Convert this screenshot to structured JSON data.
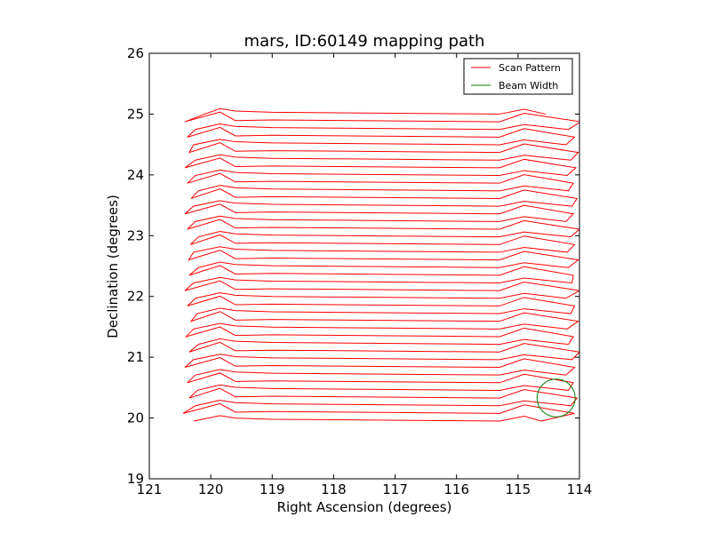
{
  "chart_data": {
    "type": "line",
    "title": "mars, ID:60149 mapping path",
    "xlabel": "Right Ascension (degrees)",
    "ylabel": "Declination (degrees)",
    "xlim": [
      121,
      114
    ],
    "ylim": [
      19,
      26
    ],
    "xticks": [
      121,
      120,
      119,
      118,
      117,
      116,
      115,
      114
    ],
    "xtick_labels": [
      "121",
      "120",
      "119",
      "118",
      "117",
      "116",
      "115",
      "114"
    ],
    "yticks": [
      19,
      20,
      21,
      22,
      23,
      24,
      25,
      26
    ],
    "ytick_labels": [
      "19",
      "20",
      "21",
      "22",
      "23",
      "24",
      "25",
      "26"
    ],
    "grid": false,
    "legend_position": "top-right",
    "series": [
      {
        "name": "Scan Pattern",
        "color": "#ff0000",
        "scan_rows": {
          "dec_start": 19.95,
          "dec_end": 25.0,
          "row_count": 41,
          "ra_east_ends": [
            120.28,
            120.45,
            120.25,
            120.35,
            120.22,
            120.38,
            120.25,
            120.42,
            120.28,
            120.35,
            120.2,
            120.4,
            120.28,
            120.32,
            120.22,
            120.38,
            120.25,
            120.42,
            120.28,
            120.35,
            120.2,
            120.36,
            120.28,
            120.33,
            120.2,
            120.38,
            120.25,
            120.42,
            120.28,
            120.32,
            120.2,
            120.38,
            120.25,
            120.42,
            120.25,
            120.35,
            120.28,
            120.38,
            120.25,
            120.42,
            120.1
          ],
          "ra_west_ends": [
            114.62,
            114.08,
            114.14,
            114.04,
            114.18,
            114.1,
            114.22,
            114.08,
            114.12,
            114.0,
            114.18,
            114.1,
            114.2,
            114.02,
            114.14,
            114.08,
            114.22,
            114.0,
            114.12,
            114.1,
            114.18,
            114.02,
            114.2,
            114.08,
            114.14,
            114.0,
            114.22,
            114.1,
            114.12,
            114.04,
            114.18,
            114.1,
            114.2,
            114.06,
            114.14,
            114.02,
            114.22,
            114.08,
            114.18,
            113.98,
            114.55
          ]
        }
      },
      {
        "name": "Beam Width",
        "color": "#008000",
        "circle": {
          "center_ra": 114.38,
          "center_dec": 20.33,
          "radius_deg": 0.31
        }
      }
    ]
  }
}
